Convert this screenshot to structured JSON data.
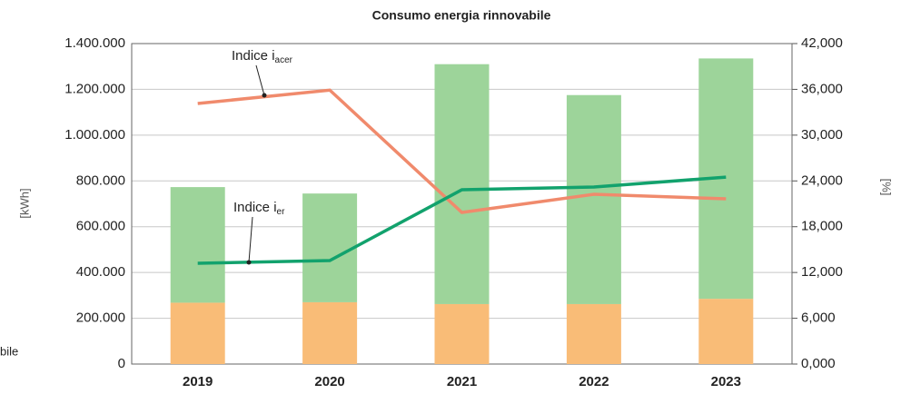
{
  "chart_data": {
    "type": "bar-line",
    "title": "Consumo energia rinnovabile",
    "ylabel": "[kWh]",
    "y2label": "[%]",
    "categories": [
      "2019",
      "2020",
      "2021",
      "2022",
      "2023"
    ],
    "ylim": [
      0,
      1400000
    ],
    "yticks": [
      0,
      {
        "value": 200000,
        "label": "200.000"
      },
      {
        "value": 400000,
        "label": "400.000"
      },
      {
        "value": 600000,
        "label": "600.000"
      },
      {
        "value": 800000,
        "label": "800.000"
      },
      {
        "value": 1000000,
        "label": "1.000.000"
      },
      {
        "value": 1200000,
        "label": "1.200.000"
      },
      {
        "value": 1400000,
        "label": "1.400.000"
      }
    ],
    "y2lim": [
      0,
      42
    ],
    "y2ticks": [
      {
        "value": 0,
        "label": "0,000"
      },
      {
        "value": 6,
        "label": "6,000"
      },
      {
        "value": 12,
        "label": "12,000"
      },
      {
        "value": 18,
        "label": "18,000"
      },
      {
        "value": 24,
        "label": "24,000"
      },
      {
        "value": 30,
        "label": "30,000"
      },
      {
        "value": 36,
        "label": "36,000"
      },
      {
        "value": 42,
        "label": "42,000"
      }
    ],
    "grid": true,
    "series": [
      {
        "kind": "bar",
        "color": "#f9bc77",
        "values": [
          268000,
          270000,
          262000,
          262000,
          285000
        ]
      },
      {
        "kind": "bar",
        "color": "#9dd49a",
        "values": [
          505000,
          475000,
          1048000,
          913000,
          1050000
        ]
      },
      {
        "kind": "line",
        "axis": "y2",
        "color": "#f08a6c",
        "label": "Indice i",
        "sub": "acer",
        "values": [
          34.15,
          35.9,
          19.87,
          22.25,
          21.65
        ]
      },
      {
        "kind": "line",
        "axis": "y2",
        "color": "#12a26d",
        "label": "Indice i",
        "sub": "er",
        "values": [
          13.2,
          13.56,
          22.84,
          23.2,
          24.5
        ]
      }
    ],
    "annotations": [
      "bile"
    ]
  }
}
